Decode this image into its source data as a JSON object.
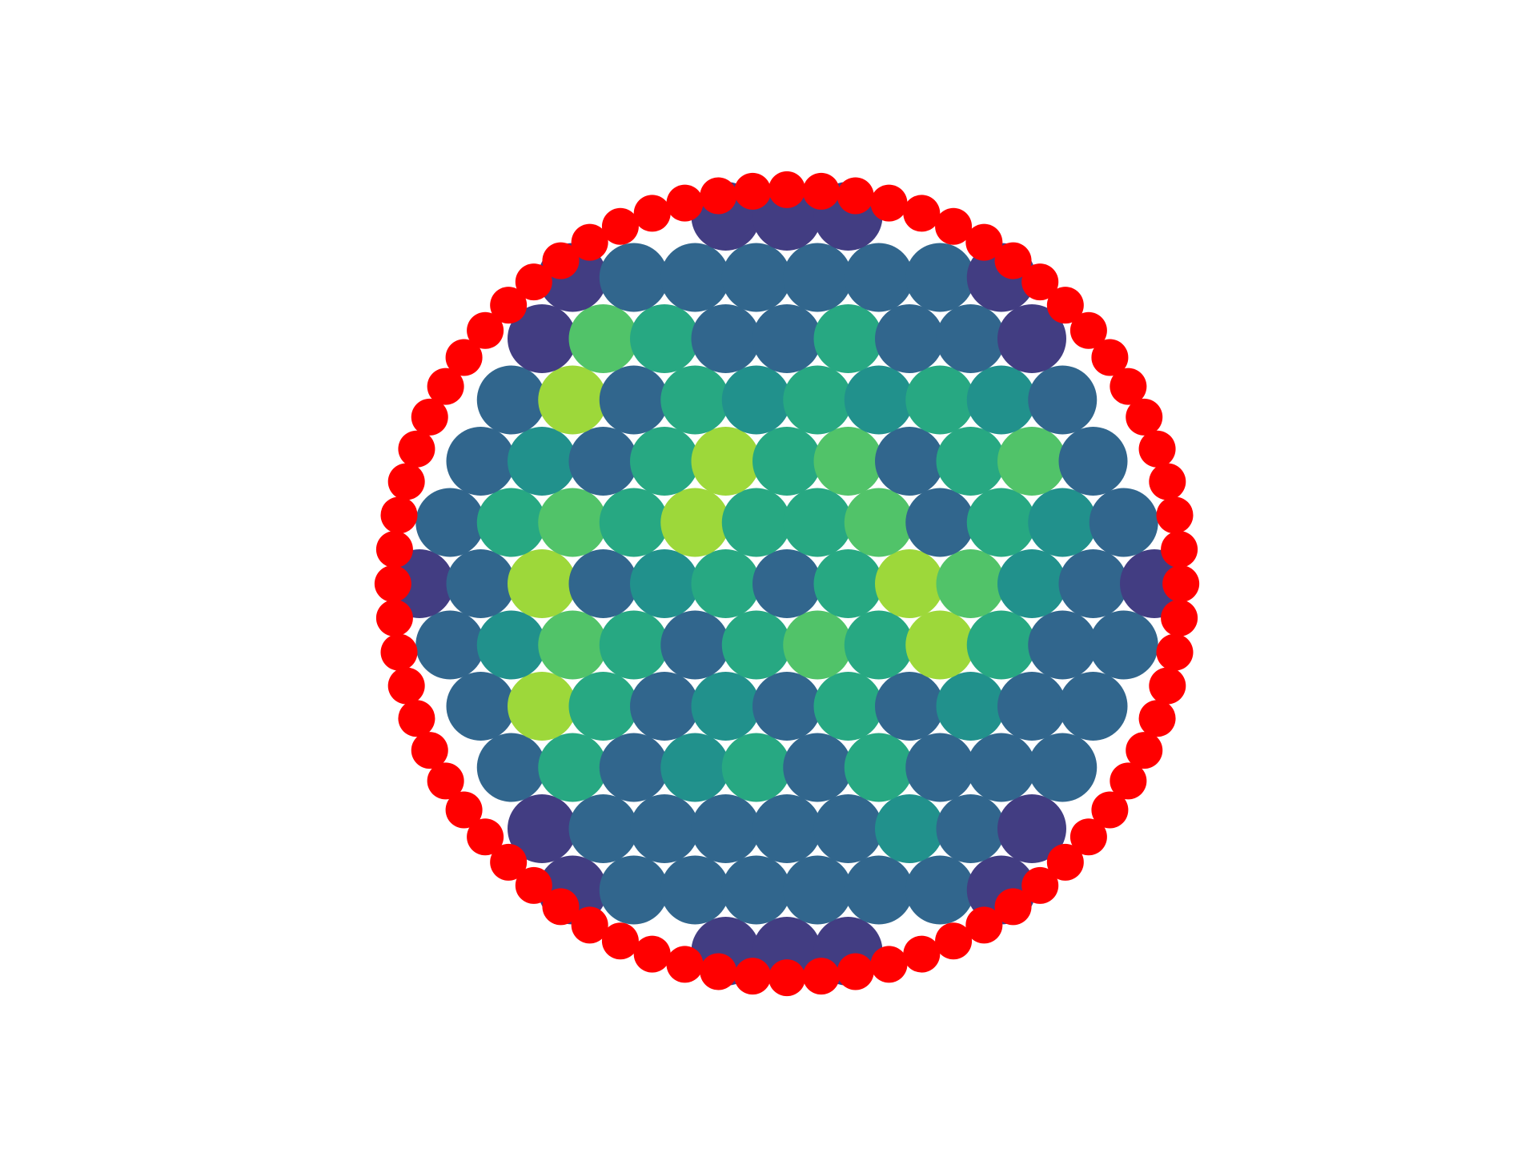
{
  "chart_data": {
    "type": "scatter",
    "xlim": [
      -1,
      1
    ],
    "ylim": [
      -1,
      1
    ],
    "series": [
      {
        "colormap": [
          "#440154",
          "#472d7b",
          "#3b528b",
          "#2c728e",
          "#21918c",
          "#28ae80",
          "#5ec962",
          "#addc30",
          "#fde725"
        ],
        "clim": [
          0,
          1
        ],
        "x": [
          -0.15,
          0,
          0.15,
          -0.525,
          -0.375,
          -0.225,
          -0.075,
          0.075,
          0.225,
          0.375,
          0.525,
          -0.6,
          -0.45,
          -0.3,
          -0.15,
          0,
          0.15,
          0.3,
          0.45,
          0.6,
          -0.675,
          -0.525,
          -0.375,
          -0.225,
          -0.075,
          0.075,
          0.225,
          0.375,
          0.525,
          0.675,
          -0.75,
          -0.6,
          -0.45,
          -0.3,
          -0.15,
          0,
          0.15,
          0.3,
          0.45,
          0.6,
          0.75,
          -0.825,
          -0.675,
          -0.525,
          -0.375,
          -0.225,
          -0.075,
          0.075,
          0.225,
          0.375,
          0.525,
          0.675,
          0.825,
          -0.9,
          -0.75,
          -0.6,
          -0.45,
          -0.3,
          -0.15,
          0,
          0.15,
          0.3,
          0.45,
          0.6,
          0.75,
          0.9,
          -0.825,
          -0.675,
          -0.525,
          -0.375,
          -0.225,
          -0.075,
          0.075,
          0.225,
          0.375,
          0.525,
          0.675,
          0.825,
          -0.75,
          -0.6,
          -0.45,
          -0.3,
          -0.15,
          0,
          0.15,
          0.3,
          0.45,
          0.6,
          0.75,
          -0.675,
          -0.525,
          -0.375,
          -0.225,
          -0.075,
          0.075,
          0.225,
          0.375,
          0.525,
          0.675,
          -0.6,
          -0.45,
          -0.3,
          -0.15,
          0,
          0.15,
          0.3,
          0.45,
          0.6,
          -0.525,
          -0.375,
          -0.225,
          -0.075,
          0.075,
          0.225,
          0.375,
          0.525,
          -0.15,
          0,
          0.15
        ],
        "y": [
          -0.9,
          -0.9,
          -0.9,
          -0.75,
          -0.75,
          -0.75,
          -0.75,
          -0.75,
          -0.75,
          -0.75,
          -0.75,
          -0.6,
          -0.6,
          -0.6,
          -0.6,
          -0.6,
          -0.6,
          -0.6,
          -0.6,
          -0.6,
          -0.45,
          -0.45,
          -0.45,
          -0.45,
          -0.45,
          -0.45,
          -0.45,
          -0.45,
          -0.45,
          -0.45,
          -0.3,
          -0.3,
          -0.3,
          -0.3,
          -0.3,
          -0.3,
          -0.3,
          -0.3,
          -0.3,
          -0.3,
          -0.3,
          -0.15,
          -0.15,
          -0.15,
          -0.15,
          -0.15,
          -0.15,
          -0.15,
          -0.15,
          -0.15,
          -0.15,
          -0.15,
          -0.15,
          0,
          0,
          0,
          0,
          0,
          0,
          0,
          0,
          0,
          0,
          0,
          0,
          0,
          0.15,
          0.15,
          0.15,
          0.15,
          0.15,
          0.15,
          0.15,
          0.15,
          0.15,
          0.15,
          0.15,
          0.15,
          0.3,
          0.3,
          0.3,
          0.3,
          0.3,
          0.3,
          0.3,
          0.3,
          0.3,
          0.3,
          0.3,
          0.45,
          0.45,
          0.45,
          0.45,
          0.45,
          0.45,
          0.45,
          0.45,
          0.45,
          0.45,
          0.6,
          0.6,
          0.6,
          0.6,
          0.6,
          0.6,
          0.6,
          0.6,
          0.6,
          0.75,
          0.75,
          0.75,
          0.75,
          0.75,
          0.75,
          0.75,
          0.75,
          0.9,
          0.9,
          0.9
        ],
        "values": [
          0.18,
          0.18,
          0.18,
          0.18,
          0.33,
          0.33,
          0.33,
          0.33,
          0.33,
          0.33,
          0.18,
          0.18,
          0.33,
          0.33,
          0.33,
          0.33,
          0.33,
          0.5,
          0.33,
          0.18,
          0.33,
          0.6,
          0.33,
          0.5,
          0.6,
          0.33,
          0.6,
          0.33,
          0.33,
          0.33,
          0.33,
          0.85,
          0.6,
          0.33,
          0.5,
          0.33,
          0.6,
          0.33,
          0.5,
          0.33,
          0.33,
          0.33,
          0.5,
          0.72,
          0.6,
          0.33,
          0.6,
          0.72,
          0.6,
          0.85,
          0.6,
          0.33,
          0.33,
          0.18,
          0.33,
          0.85,
          0.33,
          0.5,
          0.6,
          0.33,
          0.6,
          0.85,
          0.72,
          0.5,
          0.33,
          0.18,
          0.33,
          0.6,
          0.72,
          0.6,
          0.85,
          0.6,
          0.6,
          0.72,
          0.33,
          0.6,
          0.5,
          0.33,
          0.33,
          0.5,
          0.33,
          0.6,
          0.85,
          0.6,
          0.72,
          0.33,
          0.6,
          0.72,
          0.33,
          0.33,
          0.85,
          0.33,
          0.6,
          0.5,
          0.6,
          0.5,
          0.6,
          0.5,
          0.33,
          0.18,
          0.72,
          0.6,
          0.33,
          0.33,
          0.6,
          0.33,
          0.33,
          0.18,
          0.18,
          0.33,
          0.33,
          0.33,
          0.33,
          0.33,
          0.33,
          0.18,
          0.18,
          0.18,
          0.18
        ]
      },
      {
        "color": "#ff0000",
        "x": [
          0.965,
          0.961,
          0.95,
          0.932,
          0.907,
          0.875,
          0.836,
          0.791,
          0.739,
          0.682,
          0.62,
          0.554,
          0.483,
          0.408,
          0.33,
          0.25,
          0.168,
          0.084,
          0,
          -0.084,
          -0.168,
          -0.25,
          -0.33,
          -0.408,
          -0.483,
          -0.554,
          -0.62,
          -0.682,
          -0.739,
          -0.791,
          -0.836,
          -0.875,
          -0.907,
          -0.932,
          -0.95,
          -0.961,
          -0.965,
          -0.961,
          -0.95,
          -0.932,
          -0.907,
          -0.875,
          -0.836,
          -0.791,
          -0.739,
          -0.682,
          -0.62,
          -0.554,
          -0.483,
          -0.408,
          -0.33,
          -0.25,
          -0.168,
          -0.084,
          0,
          0.084,
          0.168,
          0.25,
          0.33,
          0.408,
          0.483,
          0.554,
          0.62,
          0.682,
          0.739,
          0.791,
          0.836,
          0.875,
          0.907,
          0.932,
          0.95,
          0.961
        ],
        "y": [
          0,
          0.084,
          0.168,
          0.25,
          0.33,
          0.408,
          0.483,
          0.554,
          0.62,
          0.682,
          0.739,
          0.791,
          0.836,
          0.875,
          0.907,
          0.932,
          0.95,
          0.961,
          0.965,
          0.961,
          0.95,
          0.932,
          0.907,
          0.875,
          0.836,
          0.791,
          0.739,
          0.682,
          0.62,
          0.554,
          0.483,
          0.408,
          0.33,
          0.25,
          0.168,
          0.084,
          0,
          -0.084,
          -0.168,
          -0.25,
          -0.33,
          -0.408,
          -0.483,
          -0.554,
          -0.62,
          -0.682,
          -0.739,
          -0.791,
          -0.836,
          -0.875,
          -0.907,
          -0.932,
          -0.95,
          -0.961,
          -0.965,
          -0.961,
          -0.95,
          -0.932,
          -0.907,
          -0.875,
          -0.836,
          -0.791,
          -0.739,
          -0.682,
          -0.62,
          -0.554,
          -0.483,
          -0.408,
          -0.33,
          -0.25,
          -0.168,
          -0.084
        ]
      }
    ]
  }
}
